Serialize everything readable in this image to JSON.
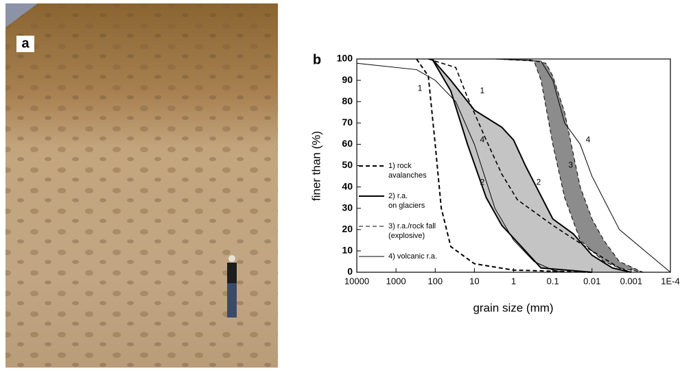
{
  "panel_a": {
    "label": "a"
  },
  "chart_data": {
    "type": "line",
    "panel_label": "b",
    "xlabel": "grain size (mm)",
    "ylabel": "finer than (%)",
    "xscale": "log",
    "xlim": [
      10000,
      0.0001
    ],
    "ylim": [
      0,
      100
    ],
    "xticks": [
      10000,
      1000,
      100,
      10,
      1,
      0.1,
      0.01,
      0.001,
      {
        "value": 0.0001,
        "label": "1E-4"
      }
    ],
    "yticks": [
      0,
      10,
      20,
      30,
      40,
      50,
      60,
      70,
      80,
      90,
      100
    ],
    "series": [
      {
        "name": "1) rock\navalanches",
        "color": "#000",
        "width": 2,
        "dash": "6,4",
        "fill": null,
        "x": [
          300,
          150,
          100,
          70,
          40,
          10,
          1,
          0.1,
          0.01
        ],
        "values": [
          100,
          92,
          60,
          30,
          12,
          4,
          1,
          0.5,
          0
        ]
      },
      {
        "name": null,
        "color": "#000",
        "width": 1.6,
        "dash": "6,4",
        "fill": null,
        "x": [
          150,
          30,
          15,
          5,
          2,
          0.8,
          0.1,
          0.01,
          0.002,
          0.001
        ],
        "values": [
          100,
          96,
          82,
          62,
          46,
          34,
          22,
          10,
          2,
          0
        ]
      },
      {
        "name": "2) r.a.\non glaciers",
        "color": "#000",
        "width": 2,
        "dash": null,
        "fill": "#c4c4c4",
        "x": [
          120,
          40,
          15,
          5,
          2,
          0.5,
          0.2,
          0.01
        ],
        "values": [
          100,
          85,
          60,
          35,
          22,
          10,
          2,
          0
        ]
      },
      {
        "name": null,
        "color": "#000",
        "width": 2,
        "dash": null,
        "fill": null,
        "x": [
          120,
          40,
          10,
          2,
          1,
          0.5,
          0.1,
          0.03,
          0.01,
          0.003,
          0.001
        ],
        "values": [
          100,
          90,
          76,
          68,
          62,
          50,
          25,
          18,
          8,
          2,
          0
        ]
      },
      {
        "name": "3) r.a./rock fall\n(explosive)",
        "color": "#000",
        "width": 1,
        "dash": "6,4",
        "fill": "#8c8c8c",
        "x": [
          3,
          0.3,
          0.2,
          0.1,
          0.05,
          0.02,
          0.005,
          0.002,
          0.0005
        ],
        "values": [
          100,
          99,
          90,
          60,
          35,
          15,
          5,
          2,
          0
        ]
      },
      {
        "name": null,
        "color": "#000",
        "width": 1,
        "dash": "6,4",
        "fill": null,
        "x": [
          3,
          0.5,
          0.15,
          0.1,
          0.05,
          0.02,
          0.01,
          0.005,
          0.002,
          0.0005
        ],
        "values": [
          100,
          100,
          98,
          92,
          75,
          40,
          25,
          15,
          5,
          0
        ]
      },
      {
        "name": "4) volcanic r.a.",
        "color": "#000",
        "width": 1,
        "dash": null,
        "fill": null,
        "x": [
          10000,
          300,
          100,
          30,
          10,
          3,
          1,
          0.3,
          0.1,
          0.05
        ],
        "values": [
          98,
          95,
          90,
          80,
          60,
          30,
          15,
          5,
          1,
          0
        ]
      },
      {
        "name": null,
        "color": "#000",
        "width": 1,
        "dash": null,
        "fill": null,
        "x": [
          3,
          0.2,
          0.1,
          0.05,
          0.02,
          0.01,
          0.002,
          0.0001
        ],
        "values": [
          100,
          99,
          90,
          70,
          60,
          45,
          20,
          0
        ]
      }
    ],
    "annotations": [
      {
        "text": "1",
        "x": 245,
        "y": 86
      },
      {
        "text": "1",
        "x": 6.3,
        "y": 85
      },
      {
        "text": "4",
        "x": 6.3,
        "y": 62
      },
      {
        "text": "2",
        "x": 6.3,
        "y": 42
      },
      {
        "text": "2",
        "x": 0.23,
        "y": 42
      },
      {
        "text": "3",
        "x": 0.035,
        "y": 50
      },
      {
        "text": "4",
        "x": 0.0126,
        "y": 62
      }
    ]
  }
}
